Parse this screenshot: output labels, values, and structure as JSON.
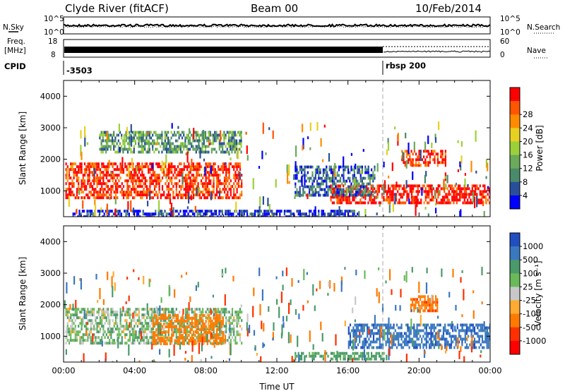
{
  "header": {
    "station": "Clyde River (fitACF)",
    "beam": "Beam 00",
    "date": "10/Feb/2014"
  },
  "top_panels": {
    "nsky_label": "N.Sky",
    "nsearch_label": "N.Search",
    "freq_label_1": "Freq.",
    "freq_label_2": "[MHz]",
    "nave_label": "Nave",
    "cpid_label": "CPID",
    "noise_left_ticks": [
      "10^5",
      "10^0"
    ],
    "noise_right_ticks": [
      "10^5",
      "10^0"
    ],
    "freq_ticks": [
      "18",
      "8"
    ],
    "nave_ticks": [
      "60",
      "0"
    ],
    "cpid_left": "-3503",
    "cpid_right": "rbsp 200"
  },
  "chart_data": [
    {
      "type": "heatmap",
      "title": "",
      "xlabel": "",
      "ylabel": "Slant Range [km]",
      "xlim": [
        "00:00",
        "24:00"
      ],
      "ylim": [
        180,
        4500
      ],
      "y_ticks": [
        "1000",
        "2000",
        "3000",
        "4000"
      ],
      "colorbar_label": "Power [dB]",
      "colorbar_ticks": [
        "4",
        "8",
        "12",
        "16",
        "20",
        "24",
        "28"
      ],
      "colorscale": [
        "#0000ff",
        "#2a4f9a",
        "#4a8a6a",
        "#6aaa5a",
        "#9cd03a",
        "#e8d020",
        "#ff8c00",
        "#ff5500",
        "#ff0000"
      ],
      "regions": [
        {
          "t_start": 0.1,
          "t_end": 10.0,
          "r_min": 800,
          "r_max": 1900,
          "value": 26
        },
        {
          "t_start": 2.0,
          "t_end": 10.0,
          "r_min": 2200,
          "r_max": 2900,
          "value": 12
        },
        {
          "t_start": 15.0,
          "t_end": 24.0,
          "r_min": 600,
          "r_max": 1200,
          "value": 27
        },
        {
          "t_start": 19.0,
          "t_end": 21.5,
          "r_min": 1800,
          "r_max": 2300,
          "value": 26
        },
        {
          "t_start": 13.0,
          "t_end": 17.5,
          "r_min": 900,
          "r_max": 1800,
          "value": 9
        },
        {
          "t_start": 0.5,
          "t_end": 16.5,
          "r_min": 200,
          "r_max": 400,
          "value": 6
        }
      ]
    },
    {
      "type": "heatmap",
      "title": "",
      "xlabel": "Time UT",
      "ylabel": "Slant Range [km]",
      "xlim": [
        "00:00",
        "24:00"
      ],
      "ylim": [
        180,
        4500
      ],
      "x_ticks": [
        "00:00",
        "04:00",
        "08:00",
        "12:00",
        "16:00",
        "20:00",
        "00:00"
      ],
      "y_ticks": [
        "1000",
        "2000",
        "3000",
        "4000"
      ],
      "colorbar_label": "Velocity [m s⁻¹]",
      "colorbar_ticks": [
        "1000",
        "500",
        "100",
        "25",
        "-25",
        "-100",
        "-500",
        "-1000"
      ],
      "colorscale": [
        "#2050c0",
        "#3a78c0",
        "#4a9a6a",
        "#6aba5a",
        "#c8c8c8",
        "#ffaa30",
        "#ff7a00",
        "#ff3000",
        "#ff0000"
      ],
      "regions": [
        {
          "t_start": 0.1,
          "t_end": 10.0,
          "r_min": 800,
          "r_max": 1900,
          "value": 60
        },
        {
          "t_start": 5.0,
          "t_end": 9.0,
          "r_min": 800,
          "r_max": 1700,
          "value": -300
        },
        {
          "t_start": 16.0,
          "t_end": 24.0,
          "r_min": 600,
          "r_max": 1400,
          "value": 800
        },
        {
          "t_start": 19.5,
          "t_end": 21.0,
          "r_min": 1800,
          "r_max": 2300,
          "value": -400
        },
        {
          "t_start": 13.0,
          "t_end": 18.0,
          "r_min": 250,
          "r_max": 500,
          "value": 150
        }
      ]
    }
  ]
}
